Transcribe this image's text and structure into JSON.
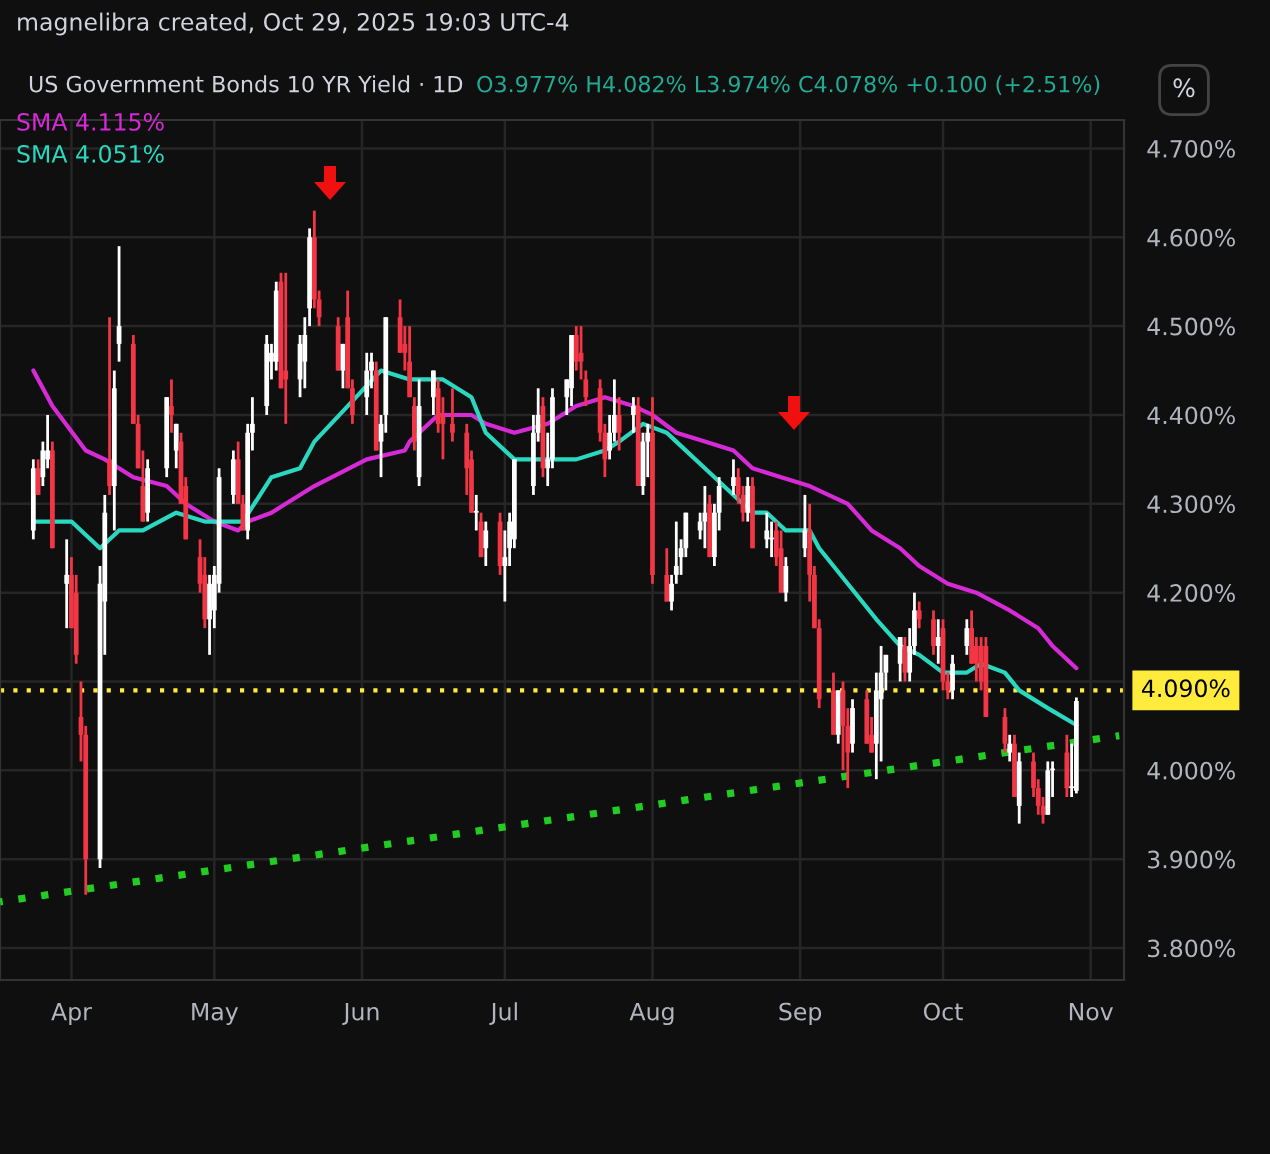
{
  "chart_data": {
    "type": "candlestick",
    "title": "US Government Bonds 10 YR Yield · 1D",
    "annotations": [
      "magnelibra created, Oct 29, 2025 19:03 UTC-4",
      "O3.977% H4.082% L3.974% C4.078% +0.100 (+2.51%)",
      "%"
    ],
    "x": [
      "2025-03-24",
      "2025-03-25",
      "2025-03-26",
      "2025-03-27",
      "2025-03-28",
      "2025-03-31",
      "2025-04-01",
      "2025-04-02",
      "2025-04-03",
      "2025-04-04",
      "2025-04-07",
      "2025-04-08",
      "2025-04-09",
      "2025-04-10",
      "2025-04-11",
      "2025-04-14",
      "2025-04-15",
      "2025-04-16",
      "2025-04-17",
      "2025-04-21",
      "2025-04-22",
      "2025-04-23",
      "2025-04-24",
      "2025-04-25",
      "2025-04-28",
      "2025-04-29",
      "2025-04-30",
      "2025-05-01",
      "2025-05-02",
      "2025-05-05",
      "2025-05-06",
      "2025-05-07",
      "2025-05-08",
      "2025-05-09",
      "2025-05-12",
      "2025-05-13",
      "2025-05-14",
      "2025-05-15",
      "2025-05-16",
      "2025-05-19",
      "2025-05-20",
      "2025-05-21",
      "2025-05-22",
      "2025-05-23",
      "2025-05-27",
      "2025-05-28",
      "2025-05-29",
      "2025-05-30",
      "2025-06-02",
      "2025-06-03",
      "2025-06-04",
      "2025-06-05",
      "2025-06-06",
      "2025-06-09",
      "2025-06-10",
      "2025-06-11",
      "2025-06-12",
      "2025-06-13",
      "2025-06-16",
      "2025-06-17",
      "2025-06-18",
      "2025-06-20",
      "2025-06-23",
      "2025-06-24",
      "2025-06-25",
      "2025-06-26",
      "2025-06-27",
      "2025-06-30",
      "2025-07-01",
      "2025-07-02",
      "2025-07-03",
      "2025-07-07",
      "2025-07-08",
      "2025-07-09",
      "2025-07-10",
      "2025-07-11",
      "2025-07-14",
      "2025-07-15",
      "2025-07-16",
      "2025-07-17",
      "2025-07-18",
      "2025-07-21",
      "2025-07-22",
      "2025-07-23",
      "2025-07-24",
      "2025-07-25",
      "2025-07-28",
      "2025-07-29",
      "2025-07-30",
      "2025-07-31",
      "2025-08-01",
      "2025-08-04",
      "2025-08-05",
      "2025-08-06",
      "2025-08-07",
      "2025-08-08",
      "2025-08-11",
      "2025-08-12",
      "2025-08-13",
      "2025-08-14",
      "2025-08-15",
      "2025-08-18",
      "2025-08-19",
      "2025-08-20",
      "2025-08-21",
      "2025-08-22",
      "2025-08-25",
      "2025-08-26",
      "2025-08-27",
      "2025-08-28",
      "2025-08-29",
      "2025-09-02",
      "2025-09-03",
      "2025-09-04",
      "2025-09-05",
      "2025-09-08",
      "2025-09-09",
      "2025-09-10",
      "2025-09-11",
      "2025-09-12",
      "2025-09-15",
      "2025-09-16",
      "2025-09-17",
      "2025-09-18",
      "2025-09-19",
      "2025-09-22",
      "2025-09-23",
      "2025-09-24",
      "2025-09-25",
      "2025-09-26",
      "2025-09-29",
      "2025-09-30",
      "2025-10-01",
      "2025-10-02",
      "2025-10-03",
      "2025-10-06",
      "2025-10-07",
      "2025-10-08",
      "2025-10-09",
      "2025-10-10",
      "2025-10-14",
      "2025-10-15",
      "2025-10-16",
      "2025-10-17",
      "2025-10-20",
      "2025-10-21",
      "2025-10-22",
      "2025-10-23",
      "2025-10-24",
      "2025-10-27",
      "2025-10-28",
      "2025-10-29"
    ],
    "ohlc": [
      [
        4.27,
        4.35,
        4.26,
        4.34
      ],
      [
        4.34,
        4.35,
        4.31,
        4.31
      ],
      [
        4.33,
        4.37,
        4.32,
        4.36
      ],
      [
        4.35,
        4.4,
        4.34,
        4.36
      ],
      [
        4.36,
        4.37,
        4.25,
        4.25
      ],
      [
        4.21,
        4.26,
        4.16,
        4.22
      ],
      [
        4.22,
        4.24,
        4.16,
        4.16
      ],
      [
        4.2,
        4.22,
        4.12,
        4.13
      ],
      [
        4.06,
        4.1,
        4.01,
        4.04
      ],
      [
        4.04,
        4.05,
        3.86,
        3.9
      ],
      [
        3.9,
        4.23,
        3.89,
        4.21
      ],
      [
        4.19,
        4.31,
        4.13,
        4.29
      ],
      [
        4.35,
        4.51,
        4.31,
        4.32
      ],
      [
        4.32,
        4.45,
        4.27,
        4.43
      ],
      [
        4.48,
        4.59,
        4.46,
        4.5
      ],
      [
        4.48,
        4.49,
        4.39,
        4.39
      ],
      [
        4.39,
        4.4,
        4.34,
        4.34
      ],
      [
        4.32,
        4.36,
        4.28,
        4.28
      ],
      [
        4.29,
        4.35,
        4.28,
        4.34
      ],
      [
        4.34,
        4.42,
        4.33,
        4.42
      ],
      [
        4.41,
        4.44,
        4.38,
        4.4
      ],
      [
        4.36,
        4.39,
        4.34,
        4.39
      ],
      [
        4.37,
        4.38,
        4.3,
        4.3
      ],
      [
        4.32,
        4.33,
        4.26,
        4.26
      ],
      [
        4.24,
        4.26,
        4.2,
        4.21
      ],
      [
        4.22,
        4.24,
        4.16,
        4.17
      ],
      [
        4.17,
        4.22,
        4.13,
        4.21
      ],
      [
        4.18,
        4.23,
        4.16,
        4.22
      ],
      [
        4.21,
        4.34,
        4.2,
        4.33
      ],
      [
        4.31,
        4.36,
        4.3,
        4.35
      ],
      [
        4.35,
        4.37,
        4.3,
        4.3
      ],
      [
        4.3,
        4.31,
        4.27,
        4.27
      ],
      [
        4.27,
        4.39,
        4.26,
        4.38
      ],
      [
        4.38,
        4.42,
        4.36,
        4.39
      ],
      [
        4.41,
        4.49,
        4.4,
        4.48
      ],
      [
        4.46,
        4.48,
        4.44,
        4.47
      ],
      [
        4.46,
        4.55,
        4.45,
        4.54
      ],
      [
        4.55,
        4.56,
        4.43,
        4.43
      ],
      [
        4.45,
        4.56,
        4.39,
        4.44
      ],
      [
        4.44,
        4.49,
        4.42,
        4.48
      ],
      [
        4.46,
        4.51,
        4.43,
        4.49
      ],
      [
        4.52,
        4.61,
        4.5,
        4.6
      ],
      [
        4.6,
        4.63,
        4.52,
        4.53
      ],
      [
        4.53,
        4.54,
        4.5,
        4.51
      ],
      [
        4.5,
        4.51,
        4.45,
        4.45
      ],
      [
        4.45,
        4.48,
        4.43,
        4.48
      ],
      [
        4.51,
        4.54,
        4.43,
        4.43
      ],
      [
        4.43,
        4.44,
        4.39,
        4.4
      ],
      [
        4.42,
        4.47,
        4.4,
        4.45
      ],
      [
        4.45,
        4.47,
        4.43,
        4.46
      ],
      [
        4.45,
        4.46,
        4.36,
        4.36
      ],
      [
        4.37,
        4.4,
        4.33,
        4.39
      ],
      [
        4.4,
        4.51,
        4.38,
        4.51
      ],
      [
        4.51,
        4.53,
        4.47,
        4.47
      ],
      [
        4.48,
        4.5,
        4.45,
        4.47
      ],
      [
        4.46,
        4.5,
        4.42,
        4.42
      ],
      [
        4.41,
        4.42,
        4.36,
        4.37
      ],
      [
        4.33,
        4.44,
        4.32,
        4.41
      ],
      [
        4.42,
        4.45,
        4.4,
        4.45
      ],
      [
        4.43,
        4.44,
        4.38,
        4.39
      ],
      [
        4.4,
        4.42,
        4.35,
        4.39
      ],
      [
        4.39,
        4.43,
        4.37,
        4.38
      ],
      [
        4.38,
        4.39,
        4.31,
        4.34
      ],
      [
        4.35,
        4.36,
        4.29,
        4.29
      ],
      [
        4.29,
        4.31,
        4.27,
        4.29
      ],
      [
        4.28,
        4.29,
        4.24,
        4.24
      ],
      [
        4.25,
        4.28,
        4.23,
        4.27
      ],
      [
        4.28,
        4.29,
        4.22,
        4.23
      ],
      [
        4.23,
        4.27,
        4.19,
        4.24
      ],
      [
        4.25,
        4.29,
        4.23,
        4.28
      ],
      [
        4.26,
        4.35,
        4.25,
        4.35
      ],
      [
        4.32,
        4.4,
        4.31,
        4.38
      ],
      [
        4.38,
        4.43,
        4.37,
        4.4
      ],
      [
        4.41,
        4.42,
        4.33,
        4.34
      ],
      [
        4.34,
        4.38,
        4.32,
        4.35
      ],
      [
        4.35,
        4.43,
        4.34,
        4.42
      ],
      [
        4.42,
        4.44,
        4.4,
        4.44
      ],
      [
        4.43,
        4.49,
        4.41,
        4.49
      ],
      [
        4.49,
        4.5,
        4.45,
        4.46
      ],
      [
        4.47,
        4.5,
        4.44,
        4.46
      ],
      [
        4.44,
        4.45,
        4.41,
        4.42
      ],
      [
        4.43,
        4.44,
        4.37,
        4.38
      ],
      [
        4.38,
        4.39,
        4.33,
        4.35
      ],
      [
        4.36,
        4.4,
        4.35,
        4.38
      ],
      [
        4.38,
        4.44,
        4.37,
        4.4
      ],
      [
        4.4,
        4.42,
        4.36,
        4.38
      ],
      [
        4.4,
        4.42,
        4.38,
        4.41
      ],
      [
        4.41,
        4.42,
        4.32,
        4.32
      ],
      [
        4.32,
        4.38,
        4.31,
        4.37
      ],
      [
        4.37,
        4.39,
        4.33,
        4.38
      ],
      [
        4.38,
        4.42,
        4.21,
        4.22
      ],
      [
        4.22,
        4.25,
        4.19,
        4.19
      ],
      [
        4.19,
        4.22,
        4.18,
        4.21
      ],
      [
        4.22,
        4.28,
        4.21,
        4.23
      ],
      [
        4.24,
        4.26,
        4.22,
        4.25
      ],
      [
        4.25,
        4.29,
        4.24,
        4.29
      ],
      [
        4.27,
        4.29,
        4.26,
        4.28
      ],
      [
        4.28,
        4.32,
        4.25,
        4.29
      ],
      [
        4.3,
        4.31,
        4.24,
        4.24
      ],
      [
        4.24,
        4.3,
        4.23,
        4.29
      ],
      [
        4.29,
        4.33,
        4.27,
        4.32
      ],
      [
        4.32,
        4.35,
        4.31,
        4.33
      ],
      [
        4.33,
        4.34,
        4.3,
        4.31
      ],
      [
        4.31,
        4.32,
        4.28,
        4.29
      ],
      [
        4.29,
        4.33,
        4.28,
        4.32
      ],
      [
        4.32,
        4.33,
        4.25,
        4.25
      ],
      [
        4.26,
        4.29,
        4.25,
        4.27
      ],
      [
        4.26,
        4.28,
        4.24,
        4.26
      ],
      [
        4.27,
        4.28,
        4.23,
        4.24
      ],
      [
        4.25,
        4.27,
        4.2,
        4.2
      ],
      [
        4.2,
        4.24,
        4.19,
        4.23
      ],
      [
        4.25,
        4.31,
        4.24,
        4.27
      ],
      [
        4.27,
        4.3,
        4.19,
        4.22
      ],
      [
        4.22,
        4.23,
        4.16,
        4.16
      ],
      [
        4.16,
        4.17,
        4.07,
        4.08
      ],
      [
        4.09,
        4.11,
        4.04,
        4.04
      ],
      [
        4.04,
        4.09,
        4.03,
        4.09
      ],
      [
        4.09,
        4.1,
        4.0,
        4.05
      ],
      [
        4.05,
        4.07,
        3.98,
        4.02
      ],
      [
        4.03,
        4.08,
        4.02,
        4.07
      ],
      [
        4.08,
        4.09,
        4.03,
        4.03
      ],
      [
        4.04,
        4.06,
        4.02,
        4.02
      ],
      [
        4.03,
        4.11,
        3.99,
        4.09
      ],
      [
        4.08,
        4.14,
        4.01,
        4.11
      ],
      [
        4.11,
        4.13,
        4.09,
        4.13
      ],
      [
        4.12,
        4.15,
        4.1,
        4.15
      ],
      [
        4.14,
        4.15,
        4.1,
        4.11
      ],
      [
        4.11,
        4.16,
        4.1,
        4.14
      ],
      [
        4.14,
        4.2,
        4.13,
        4.18
      ],
      [
        4.18,
        4.19,
        4.16,
        4.17
      ],
      [
        4.17,
        4.18,
        4.13,
        4.14
      ],
      [
        4.14,
        4.17,
        4.12,
        4.15
      ],
      [
        4.16,
        4.17,
        4.09,
        4.1
      ],
      [
        4.1,
        4.11,
        4.08,
        4.09
      ],
      [
        4.09,
        4.13,
        4.08,
        4.12
      ],
      [
        4.14,
        4.17,
        4.13,
        4.16
      ],
      [
        4.16,
        4.18,
        4.12,
        4.12
      ],
      [
        4.14,
        4.15,
        4.1,
        4.12
      ],
      [
        4.14,
        4.15,
        4.09,
        4.1
      ],
      [
        4.14,
        4.15,
        4.06,
        4.06
      ],
      [
        4.06,
        4.07,
        4.02,
        4.03
      ],
      [
        4.02,
        4.04,
        4.01,
        4.03
      ],
      [
        4.03,
        4.04,
        3.97,
        3.97
      ],
      [
        3.96,
        4.02,
        3.94,
        4.01
      ],
      [
        4.01,
        4.02,
        3.97,
        3.98
      ],
      [
        3.98,
        3.99,
        3.95,
        3.96
      ],
      [
        3.96,
        3.97,
        3.94,
        3.95
      ],
      [
        3.95,
        4.01,
        3.95,
        4.0
      ],
      [
        4.0,
        4.01,
        3.97,
        4.0
      ],
      [
        4.02,
        4.04,
        3.97,
        3.98
      ],
      [
        3.98,
        4.03,
        3.97,
        3.98
      ],
      [
        3.977,
        4.082,
        3.974,
        4.078
      ]
    ],
    "series": [
      {
        "type": "line",
        "name": "SMA 4.115%",
        "color": "#d62ad6",
        "x": [
          "2025-03-24",
          "2025-03-28",
          "2025-04-04",
          "2025-04-08",
          "2025-04-14",
          "2025-04-21",
          "2025-04-25",
          "2025-05-01",
          "2025-05-06",
          "2025-05-08",
          "2025-05-13",
          "2025-05-16",
          "2025-05-22",
          "2025-06-02",
          "2025-06-10",
          "2025-06-11",
          "2025-06-17",
          "2025-06-24",
          "2025-06-27",
          "2025-07-03",
          "2025-07-10",
          "2025-07-16",
          "2025-07-22",
          "2025-07-28",
          "2025-08-01",
          "2025-08-06",
          "2025-08-12",
          "2025-08-18",
          "2025-08-22",
          "2025-08-28",
          "2025-09-03",
          "2025-09-11",
          "2025-09-16",
          "2025-09-22",
          "2025-09-26",
          "2025-10-02",
          "2025-10-08",
          "2025-10-15",
          "2025-10-21",
          "2025-10-24",
          "2025-10-29"
        ],
        "values": [
          4.45,
          4.41,
          4.36,
          4.35,
          4.33,
          4.32,
          4.3,
          4.28,
          4.27,
          4.28,
          4.29,
          4.3,
          4.32,
          4.35,
          4.36,
          4.37,
          4.4,
          4.4,
          4.39,
          4.38,
          4.39,
          4.41,
          4.42,
          4.41,
          4.4,
          4.38,
          4.37,
          4.36,
          4.34,
          4.33,
          4.32,
          4.3,
          4.27,
          4.25,
          4.23,
          4.21,
          4.2,
          4.18,
          4.16,
          4.14,
          4.115
        ]
      },
      {
        "type": "line",
        "name": "SMA 4.051%",
        "color": "#2ad8c0",
        "x": [
          "2025-03-24",
          "2025-03-26",
          "2025-04-01",
          "2025-04-07",
          "2025-04-11",
          "2025-04-16",
          "2025-04-23",
          "2025-04-29",
          "2025-05-01",
          "2025-05-07",
          "2025-05-13",
          "2025-05-19",
          "2025-05-22",
          "2025-05-29",
          "2025-06-05",
          "2025-06-11",
          "2025-06-16",
          "2025-06-18",
          "2025-06-24",
          "2025-06-27",
          "2025-07-03",
          "2025-07-10",
          "2025-07-14",
          "2025-07-16",
          "2025-07-22",
          "2025-07-25",
          "2025-07-30",
          "2025-08-04",
          "2025-08-06",
          "2025-08-12",
          "2025-08-18",
          "2025-08-22",
          "2025-08-25",
          "2025-08-29",
          "2025-09-03",
          "2025-09-05",
          "2025-09-11",
          "2025-09-17",
          "2025-09-22",
          "2025-09-26",
          "2025-10-01",
          "2025-10-06",
          "2025-10-09",
          "2025-10-14",
          "2025-10-17",
          "2025-10-23",
          "2025-10-29"
        ],
        "values": [
          4.28,
          4.28,
          4.28,
          4.25,
          4.27,
          4.27,
          4.29,
          4.28,
          4.28,
          4.28,
          4.33,
          4.34,
          4.37,
          4.41,
          4.45,
          4.44,
          4.44,
          4.44,
          4.42,
          4.38,
          4.35,
          4.35,
          4.35,
          4.35,
          4.36,
          4.37,
          4.39,
          4.38,
          4.37,
          4.34,
          4.31,
          4.29,
          4.29,
          4.27,
          4.27,
          4.25,
          4.21,
          4.17,
          4.14,
          4.13,
          4.11,
          4.11,
          4.12,
          4.11,
          4.09,
          4.07,
          4.051
        ]
      },
      {
        "type": "line",
        "color": "#22cc22",
        "line_style": "dotted",
        "x": [
          "2025-03-17",
          "2025-11-07"
        ],
        "values": [
          3.852,
          4.039
        ]
      }
    ],
    "ref_lines": [
      {
        "axis": "y",
        "value": 4.09,
        "label": "4.090%",
        "color": "#ffeb3b",
        "line_style": "dotted"
      }
    ],
    "xlim": [
      "2025-03-17",
      "2025-11-08"
    ],
    "ylim": [
      3.764,
      4.732
    ],
    "xticks": [
      {
        "value": "2025-04-01",
        "label": "Apr"
      },
      {
        "value": "2025-05-01",
        "label": "May"
      },
      {
        "value": "2025-06-01",
        "label": "Jun"
      },
      {
        "value": "2025-07-01",
        "label": "Jul"
      },
      {
        "value": "2025-08-01",
        "label": "Aug"
      },
      {
        "value": "2025-09-01",
        "label": "Sep"
      },
      {
        "value": "2025-10-01",
        "label": "Oct"
      },
      {
        "value": "2025-11-01",
        "label": "Nov"
      }
    ],
    "yticks": [
      {
        "value": 3.8,
        "label": "3.800%"
      },
      {
        "value": 3.9,
        "label": "3.900%"
      },
      {
        "value": 4.0,
        "label": "4.000%"
      },
      {
        "value": 4.1,
        "label": null
      },
      {
        "value": 4.2,
        "label": "4.200%"
      },
      {
        "value": 4.3,
        "label": "4.300%"
      },
      {
        "value": 4.4,
        "label": "4.400%"
      },
      {
        "value": 4.5,
        "label": "4.500%"
      },
      {
        "value": 4.6,
        "label": "4.600%"
      },
      {
        "value": 4.7,
        "label": "4.700%"
      }
    ],
    "grid": true
  }
}
